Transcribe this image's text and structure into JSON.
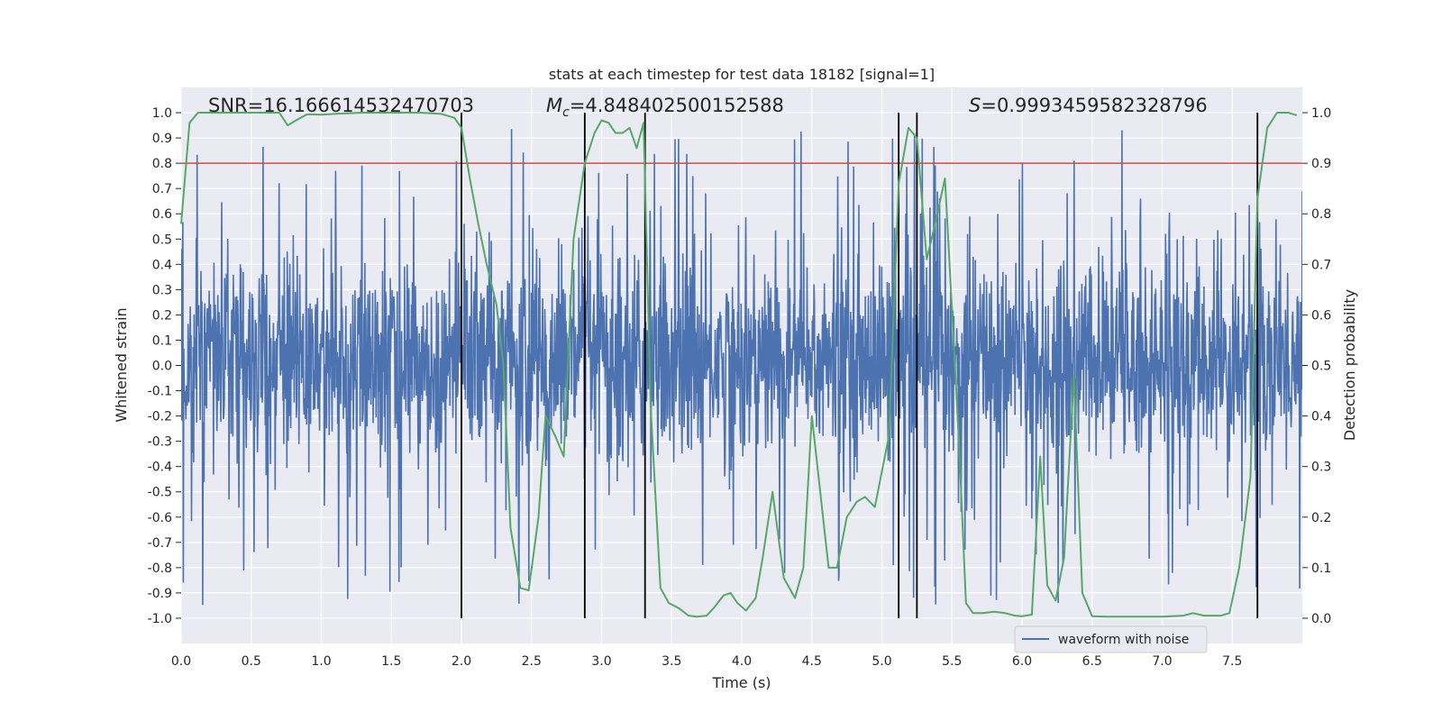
{
  "chart_data": {
    "type": "line",
    "title": "stats at each timestep for test data 18182 [signal=1]",
    "xlabel": "Time (s)",
    "ylabel": "Whitened strain",
    "y2label": "Detection probability",
    "xlim": [
      0,
      8
    ],
    "ylim": [
      -1.1,
      1.1
    ],
    "y2lim": [
      -0.05,
      1.05
    ],
    "xticks": [
      0.0,
      0.5,
      1.0,
      1.5,
      2.0,
      2.5,
      3.0,
      3.5,
      4.0,
      4.5,
      5.0,
      5.5,
      6.0,
      6.5,
      7.0,
      7.5
    ],
    "yticks": [
      -1.0,
      -0.9,
      -0.8,
      -0.7,
      -0.6,
      -0.5,
      -0.4,
      -0.3,
      -0.2,
      -0.1,
      0.0,
      0.1,
      0.2,
      0.3,
      0.4,
      0.5,
      0.6,
      0.7,
      0.8,
      0.9,
      1.0
    ],
    "y2ticks": [
      0.0,
      0.1,
      0.2,
      0.3,
      0.4,
      0.5,
      0.6,
      0.7,
      0.8,
      0.9,
      1.0
    ],
    "grid": true,
    "legend_position": "lower-right",
    "annotations": {
      "snr": "SNR=16.166614532470703",
      "mc_symbol": "M",
      "mc_sub": "c",
      "mc_value": "=4.848402500152588",
      "s_symbol": "S",
      "s_value": "=0.9993459582328796"
    },
    "threshold": {
      "axis": "y2",
      "value": 0.9,
      "color": "#c44e52"
    },
    "vertical_lines": [
      2.0,
      2.88,
      3.31,
      5.12,
      5.25,
      7.68
    ],
    "vertical_line_range": [
      0.0,
      1.0
    ],
    "series": [
      {
        "name": "waveform with noise",
        "axis": "y",
        "color": "#4c72b0",
        "kind": "noise",
        "envelope": {
          "upper": 0.45,
          "lower": -0.4,
          "peak_max": 1.0,
          "trough_min": -0.96
        }
      },
      {
        "axis": "y2",
        "color": "#55a868",
        "x": [
          0.0,
          0.06,
          0.12,
          0.2,
          0.3,
          0.4,
          0.5,
          0.6,
          0.7,
          0.76,
          0.82,
          0.9,
          1.0,
          1.1,
          1.3,
          1.5,
          1.7,
          1.85,
          1.95,
          2.0,
          2.06,
          2.12,
          2.18,
          2.25,
          2.3,
          2.35,
          2.42,
          2.48,
          2.55,
          2.6,
          2.67,
          2.73,
          2.8,
          2.88,
          2.95,
          3.0,
          3.05,
          3.1,
          3.15,
          3.2,
          3.25,
          3.3,
          3.35,
          3.42,
          3.48,
          3.55,
          3.62,
          3.68,
          3.75,
          3.8,
          3.87,
          3.92,
          3.97,
          4.03,
          4.1,
          4.15,
          4.22,
          4.3,
          4.38,
          4.44,
          4.5,
          4.56,
          4.62,
          4.68,
          4.75,
          4.82,
          4.88,
          4.95,
          5.05,
          5.12,
          5.19,
          5.25,
          5.32,
          5.38,
          5.45,
          5.5,
          5.55,
          5.6,
          5.65,
          5.72,
          5.8,
          5.88,
          5.95,
          6.0,
          6.07,
          6.13,
          6.18,
          6.24,
          6.3,
          6.37,
          6.43,
          6.5,
          6.6,
          6.8,
          7.0,
          7.15,
          7.22,
          7.3,
          7.37,
          7.42,
          7.48,
          7.55,
          7.63,
          7.68,
          7.75,
          7.82,
          7.9,
          7.96
        ],
        "values": [
          0.78,
          0.98,
          1.0,
          1.0,
          1.0,
          1.0,
          1.0,
          1.0,
          1.0,
          0.975,
          0.985,
          0.997,
          0.996,
          0.998,
          1.0,
          1.0,
          1.0,
          0.998,
          0.99,
          0.97,
          0.87,
          0.78,
          0.7,
          0.62,
          0.5,
          0.18,
          0.06,
          0.055,
          0.2,
          0.4,
          0.36,
          0.32,
          0.75,
          0.9,
          0.96,
          0.985,
          0.98,
          0.96,
          0.96,
          0.97,
          0.93,
          0.98,
          0.42,
          0.06,
          0.03,
          0.02,
          0.005,
          0.003,
          0.005,
          0.02,
          0.045,
          0.05,
          0.03,
          0.015,
          0.04,
          0.12,
          0.25,
          0.08,
          0.04,
          0.1,
          0.4,
          0.25,
          0.1,
          0.1,
          0.2,
          0.23,
          0.24,
          0.22,
          0.36,
          0.86,
          0.97,
          0.95,
          0.71,
          0.78,
          0.87,
          0.61,
          0.35,
          0.03,
          0.01,
          0.01,
          0.013,
          0.01,
          0.005,
          0.004,
          0.007,
          0.32,
          0.065,
          0.035,
          0.12,
          0.48,
          0.05,
          0.004,
          0.003,
          0.003,
          0.003,
          0.005,
          0.01,
          0.005,
          0.005,
          0.005,
          0.01,
          0.1,
          0.28,
          0.83,
          0.97,
          1.0,
          1.0,
          0.995
        ]
      }
    ]
  }
}
